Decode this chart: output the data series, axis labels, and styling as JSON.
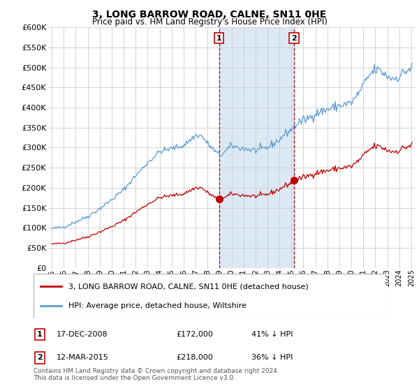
{
  "title": "3, LONG BARROW ROAD, CALNE, SN11 0HE",
  "subtitle": "Price paid vs. HM Land Registry's House Price Index (HPI)",
  "legend_line1": "3, LONG BARROW ROAD, CALNE, SN11 0HE (detached house)",
  "legend_line2": "HPI: Average price, detached house, Wiltshire",
  "footnote": "Contains HM Land Registry data © Crown copyright and database right 2024.\nThis data is licensed under the Open Government Licence v3.0.",
  "transaction1_date": "17-DEC-2008",
  "transaction1_price": 172000,
  "transaction1_pct": "41% ↓ HPI",
  "transaction1_x": 2008.96,
  "transaction2_date": "12-MAR-2015",
  "transaction2_price": 218000,
  "transaction2_pct": "36% ↓ HPI",
  "transaction2_x": 2015.21,
  "hpi_color": "#5b9bd5",
  "price_color": "#c00000",
  "shading_color": "#dce9f5",
  "annotation_border_color": "#c00000",
  "background_color": "#ffffff",
  "grid_color": "#cccccc",
  "ylim": [
    0,
    600000
  ],
  "yticks": [
    0,
    50000,
    100000,
    150000,
    200000,
    250000,
    300000,
    350000,
    400000,
    450000,
    500000,
    550000,
    600000
  ],
  "xlim_start": 1994.7,
  "xlim_end": 2025.3
}
